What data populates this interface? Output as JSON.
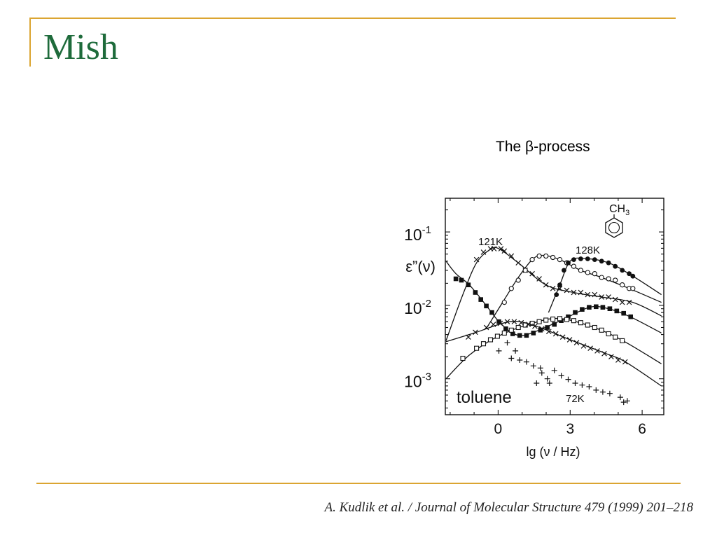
{
  "slide": {
    "title": "Mish",
    "subtitle": "The β-process",
    "citation": "A. Kudlik et al. / Journal of Molecular Structure 479 (1999) 201–218",
    "colors": {
      "accent_line": "#dba531",
      "title": "#1e6b3b",
      "ink": "#111111"
    }
  },
  "chart_data": {
    "type": "scatter",
    "xlabel": "lg (ν / Hz)",
    "ylabel": "ε”(ν)",
    "xlim": [
      -2.2,
      6.9
    ],
    "ylim": [
      0.000324,
      0.288
    ],
    "yscale": "log",
    "grid": false,
    "xticks": [
      {
        "value": 0,
        "label": "0"
      },
      {
        "value": 3,
        "label": "3"
      },
      {
        "value": 6,
        "label": "6"
      }
    ],
    "yticks": [
      {
        "value": 0.1,
        "base": "10",
        "exp": "-1"
      },
      {
        "value": 0.01,
        "base": "10",
        "exp": "-2"
      },
      {
        "value": 0.001,
        "base": "10",
        "exp": "-3"
      }
    ],
    "annotations": [
      {
        "text": "toluene"
      }
    ],
    "structure_label": {
      "main": "CH",
      "sub": "3"
    },
    "series": [
      {
        "name": "121K",
        "marker": "cross",
        "x": [
          -0.9,
          -0.61,
          -0.32,
          -0.17,
          0.12,
          0.26,
          0.55,
          0.84,
          1.13,
          1.42,
          1.71,
          1.99,
          2.28,
          2.57,
          2.86,
          3.15,
          3.44,
          3.73,
          4.02,
          4.31,
          4.6,
          4.88,
          5.17,
          5.46
        ],
        "y": [
          0.042,
          0.053,
          0.059,
          0.059,
          0.059,
          0.055,
          0.047,
          0.038,
          0.03,
          0.027,
          0.023,
          0.019,
          0.017,
          0.017,
          0.016,
          0.015,
          0.015,
          0.014,
          0.014,
          0.013,
          0.013,
          0.012,
          0.011,
          0.011
        ],
        "fit": {
          "x": [
            -2.17,
            -1.47,
            -0.9,
            -0.32,
            0.03,
            0.84,
            1.99,
            3.15,
            4.31,
            5.61,
            6.8
          ],
          "y": [
            0.0033,
            0.014,
            0.038,
            0.058,
            0.059,
            0.038,
            0.019,
            0.015,
            0.013,
            0.011,
            0.0072
          ]
        }
      },
      {
        "marker": "circle-open",
        "x": [
          0.26,
          0.55,
          0.84,
          1.13,
          1.42,
          1.71,
          1.99,
          2.28,
          2.57,
          2.86,
          3.15,
          3.44,
          3.73,
          4.02,
          4.31,
          4.6,
          4.88,
          5.17,
          5.46,
          5.61
        ],
        "y": [
          0.011,
          0.017,
          0.022,
          0.03,
          0.042,
          0.047,
          0.047,
          0.045,
          0.042,
          0.038,
          0.034,
          0.03,
          0.028,
          0.027,
          0.024,
          0.023,
          0.022,
          0.019,
          0.017,
          0.017
        ],
        "fit": {
          "x": [
            -0.5,
            0.26,
            0.84,
            1.42,
            1.85,
            2.57,
            3.44,
            4.31,
            5.46,
            6.8
          ],
          "y": [
            0.0048,
            0.012,
            0.024,
            0.042,
            0.048,
            0.042,
            0.03,
            0.024,
            0.017,
            0.011
          ]
        }
      },
      {
        "name": "128K",
        "marker": "circle-filled",
        "x": [
          2.43,
          2.57,
          2.74,
          2.92,
          3.15,
          3.44,
          3.73,
          4.02,
          4.31,
          4.6,
          4.88,
          5.17,
          5.46,
          5.61
        ],
        "y": [
          0.014,
          0.019,
          0.03,
          0.038,
          0.042,
          0.043,
          0.043,
          0.042,
          0.04,
          0.038,
          0.034,
          0.03,
          0.027,
          0.025
        ],
        "fit": {
          "x": [
            2.1,
            2.57,
            3.0,
            3.6,
            4.6,
            5.61,
            6.8
          ],
          "y": [
            0.008,
            0.019,
            0.04,
            0.0435,
            0.038,
            0.025,
            0.014
          ]
        }
      },
      {
        "marker": "square-filled",
        "x": [
          -1.76,
          -1.53,
          -1.24,
          -0.95,
          -0.72,
          -0.49,
          -0.26,
          0.03,
          0.32,
          0.61,
          0.9,
          1.18,
          1.47,
          1.76,
          2.05,
          2.34,
          2.63,
          2.92,
          3.21,
          3.5,
          3.79,
          4.08,
          4.36,
          4.65,
          4.94,
          5.23,
          5.52
        ],
        "y": [
          0.023,
          0.022,
          0.019,
          0.015,
          0.012,
          0.0098,
          0.008,
          0.006,
          0.0048,
          0.0041,
          0.0039,
          0.0039,
          0.0042,
          0.0046,
          0.005,
          0.0055,
          0.0062,
          0.007,
          0.008,
          0.0088,
          0.0094,
          0.0096,
          0.0094,
          0.009,
          0.0084,
          0.0078,
          0.007
        ],
        "fit": {
          "x": [
            -2.17,
            -1.76,
            -1.2,
            -0.5,
            0.0,
            0.6,
            1.2,
            2.6,
            3.8,
            4.6,
            5.5,
            6.8
          ],
          "y": [
            0.04,
            0.027,
            0.019,
            0.01,
            0.0062,
            0.0042,
            0.004,
            0.0062,
            0.0094,
            0.009,
            0.007,
            0.0042
          ]
        }
      },
      {
        "marker": "square-open",
        "x": [
          -1.47,
          -0.9,
          -0.61,
          -0.32,
          -0.03,
          0.26,
          0.55,
          0.84,
          1.13,
          1.42,
          1.71,
          1.99,
          2.28,
          2.57,
          2.86,
          3.15,
          3.44,
          3.73,
          4.02,
          4.31,
          4.6,
          4.88,
          5.17
        ],
        "y": [
          0.0019,
          0.0026,
          0.003,
          0.0034,
          0.0038,
          0.0042,
          0.0046,
          0.005,
          0.0054,
          0.0057,
          0.006,
          0.0063,
          0.0065,
          0.0066,
          0.0064,
          0.0062,
          0.0058,
          0.0054,
          0.005,
          0.0046,
          0.0041,
          0.0037,
          0.0033
        ],
        "fit": {
          "x": [
            -2.17,
            -1.2,
            0.0,
            1.5,
            2.6,
            4.0,
            5.2,
            6.8
          ],
          "y": [
            0.001,
            0.0021,
            0.0038,
            0.0058,
            0.0066,
            0.005,
            0.0033,
            0.0016
          ]
        }
      },
      {
        "marker": "cross",
        "x": [
          -1.24,
          -0.95,
          -0.49,
          -0.2,
          0.09,
          0.38,
          0.67,
          0.96,
          1.25,
          1.53,
          1.82,
          2.11,
          2.4,
          2.69,
          2.98,
          3.27,
          3.56,
          3.84,
          4.13,
          4.42,
          4.71,
          5.0,
          5.29
        ],
        "y": [
          0.0037,
          0.0043,
          0.005,
          0.0055,
          0.0057,
          0.006,
          0.006,
          0.0058,
          0.0055,
          0.0052,
          0.0048,
          0.0044,
          0.0041,
          0.0037,
          0.0034,
          0.0031,
          0.0028,
          0.0026,
          0.0024,
          0.0022,
          0.002,
          0.0018,
          0.0017
        ],
        "fit": {
          "x": [
            -2.17,
            -1.0,
            0.5,
            1.5,
            3.0,
            4.5,
            5.3,
            6.8
          ],
          "y": [
            0.0032,
            0.0042,
            0.006,
            0.0053,
            0.0034,
            0.0022,
            0.0017,
            0.0008
          ]
        }
      },
      {
        "name": "72K",
        "marker": "plus",
        "x": [
          0.03,
          0.38,
          0.72,
          0.55,
          0.9,
          1.18,
          1.47,
          1.6,
          1.76,
          1.82,
          2.05,
          2.14,
          2.34,
          2.63,
          2.92,
          3.21,
          3.5,
          3.79,
          4.08,
          4.36,
          4.65,
          5.09,
          5.23,
          5.38
        ],
        "y": [
          0.0024,
          0.0031,
          0.0024,
          0.0019,
          0.0018,
          0.0017,
          0.0015,
          0.00087,
          0.0014,
          0.0012,
          0.001,
          0.00087,
          0.0013,
          0.0011,
          0.00098,
          0.00087,
          0.00082,
          0.00078,
          0.0007,
          0.00066,
          0.00063,
          0.00056,
          0.00048,
          0.0005
        ]
      }
    ]
  }
}
